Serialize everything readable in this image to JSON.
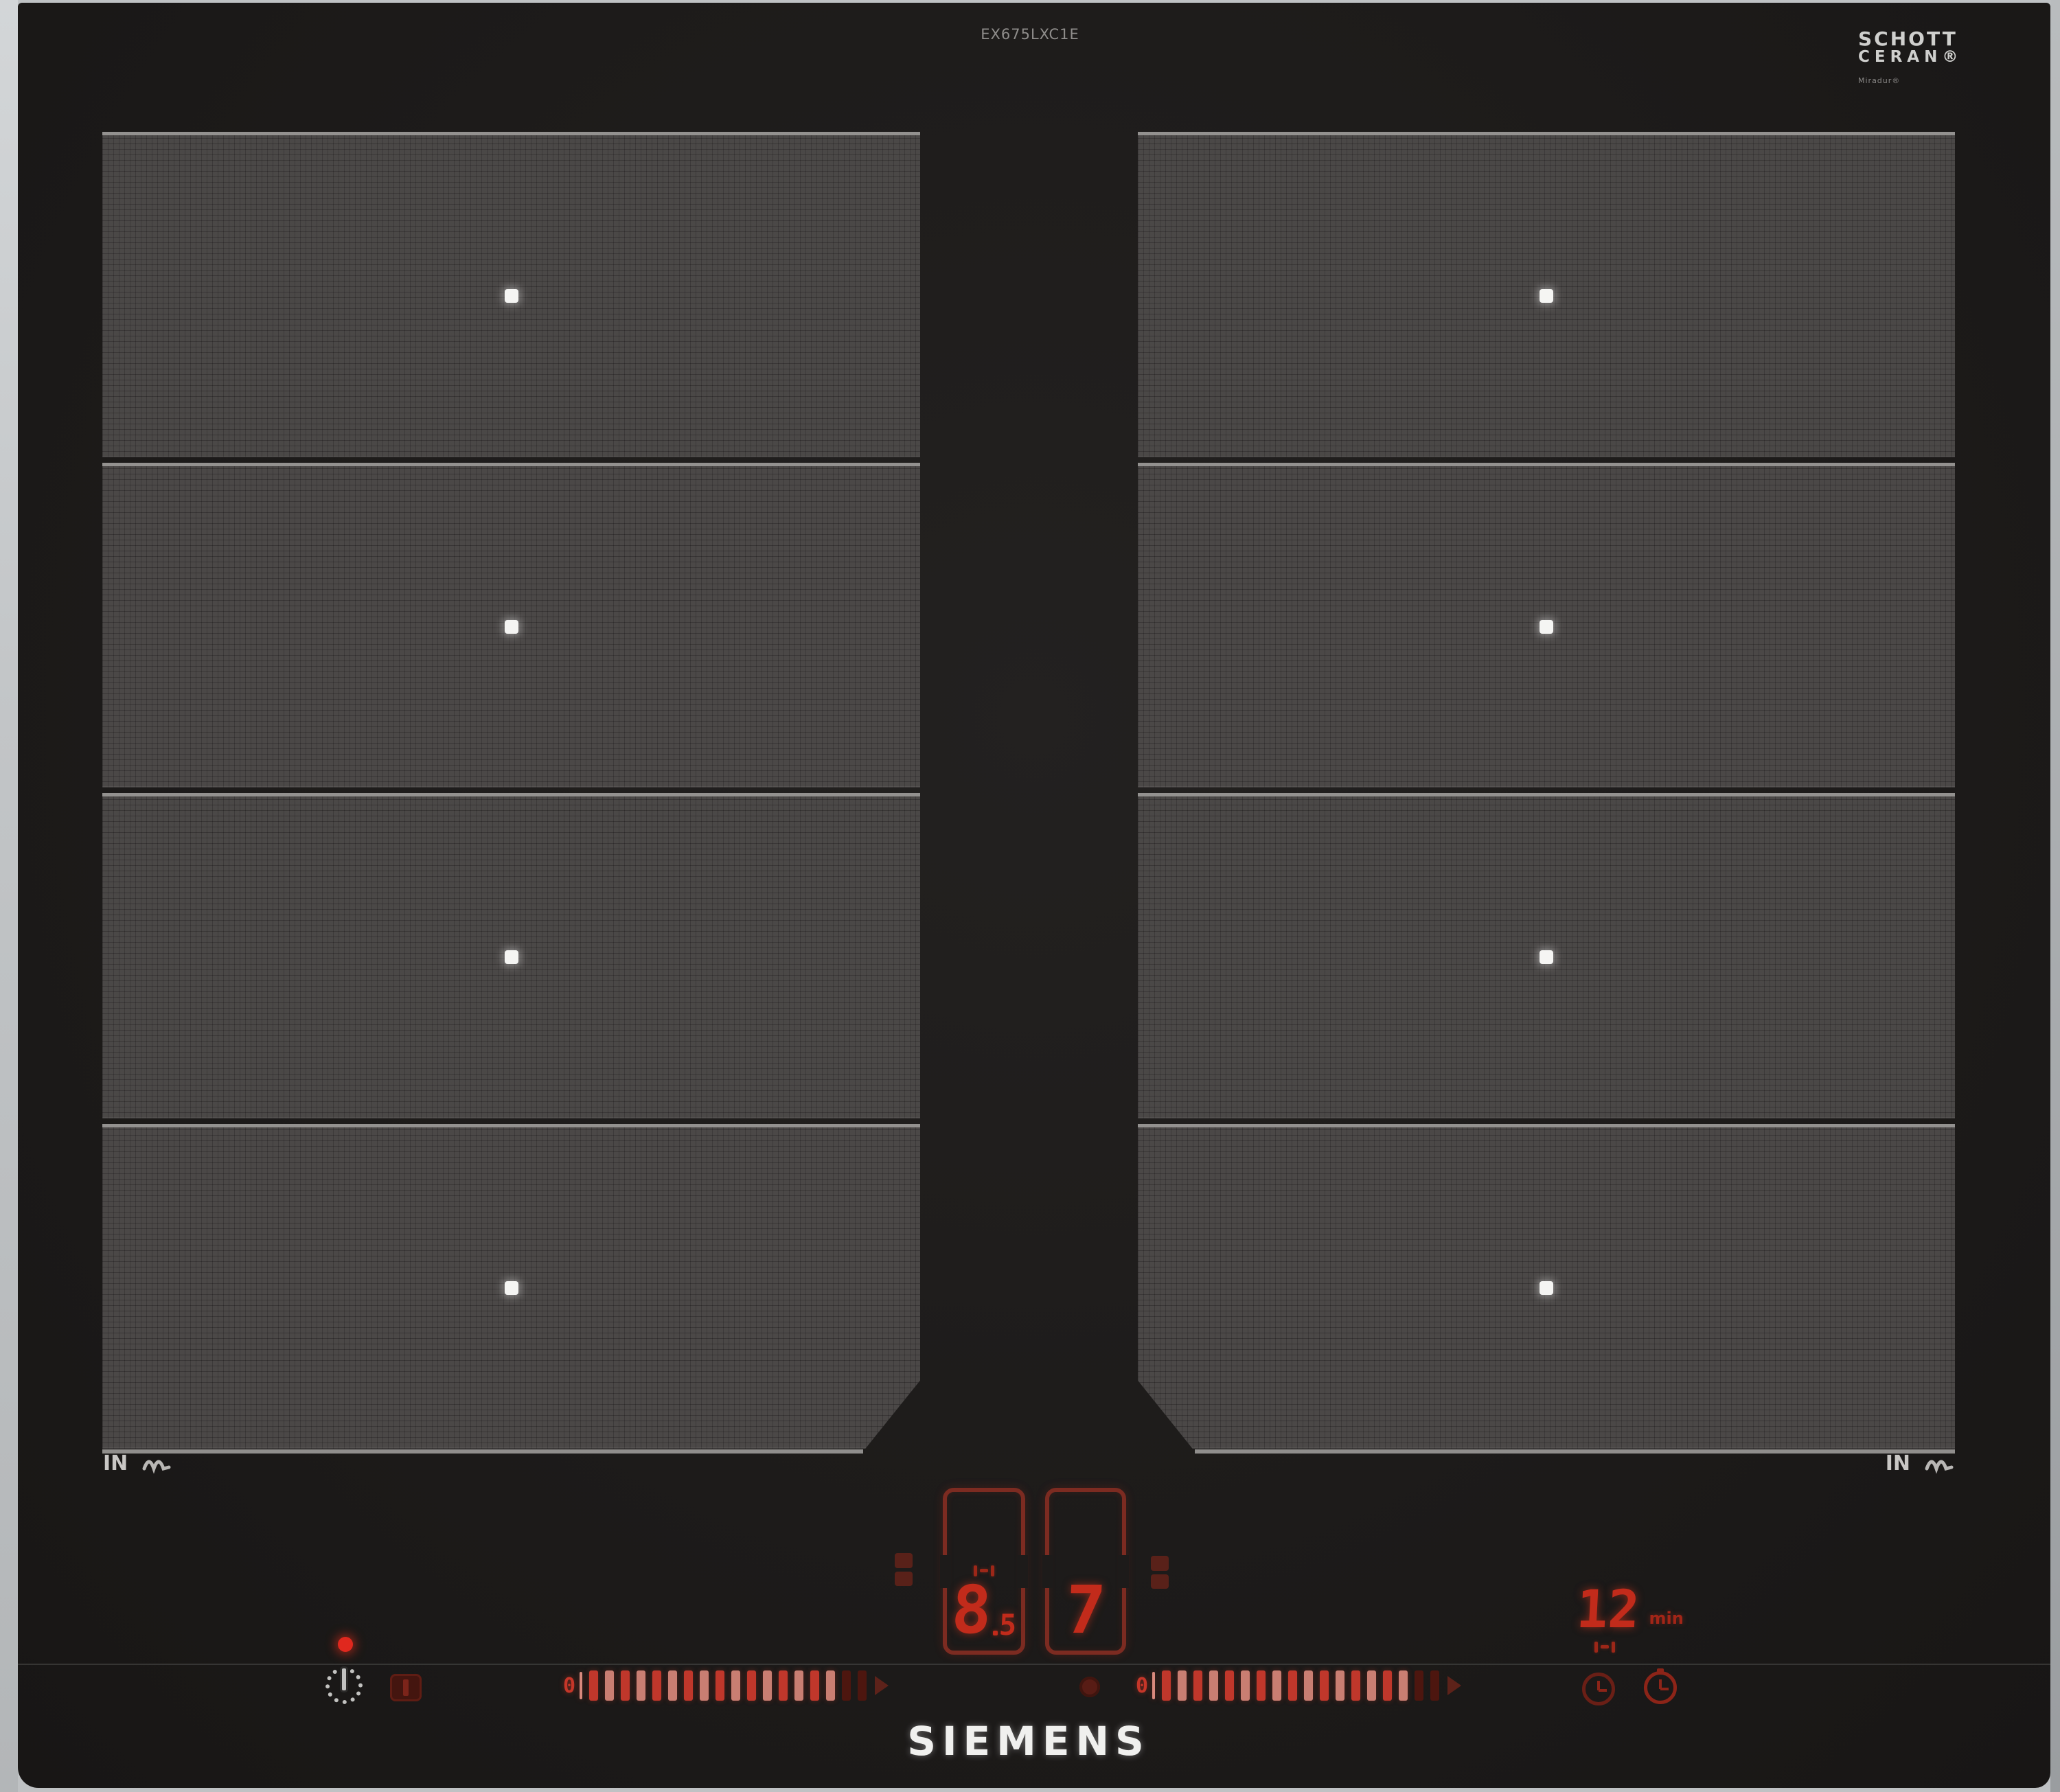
{
  "device": {
    "model_number": "EX675LXC1E",
    "brand_logo": "SIEMENS"
  },
  "glass_brand": {
    "line1": "SCHOTT",
    "line2": "CERAN®",
    "subtext": "Miradur®"
  },
  "zones": {
    "left": {
      "in_label": "IN",
      "segments": 4
    },
    "right": {
      "in_label": "IN",
      "segments": 4
    }
  },
  "displays": {
    "left_zone_level": "8",
    "left_zone_level_decimal": "5",
    "right_zone_level": "7",
    "timer_value": "12",
    "timer_unit": "min"
  },
  "sliders": {
    "zero_label": "0",
    "tick_count": 18,
    "dim_from": 16
  },
  "icons": {
    "power_key": "power-standby",
    "wipe_key": "wipe-protection",
    "timer_keys": [
      "kitchen-timer",
      "cooking-timer"
    ],
    "interval_marker": "interval-range"
  },
  "colors": {
    "display_red": "#c22b1b",
    "frame_red": "#7c2b21",
    "slider_red": "#c0372b",
    "glass_black": "#1d1b1a",
    "zone_gray": "#474443",
    "led_red": "#e0281e",
    "logo_white": "#f0f0ee"
  }
}
